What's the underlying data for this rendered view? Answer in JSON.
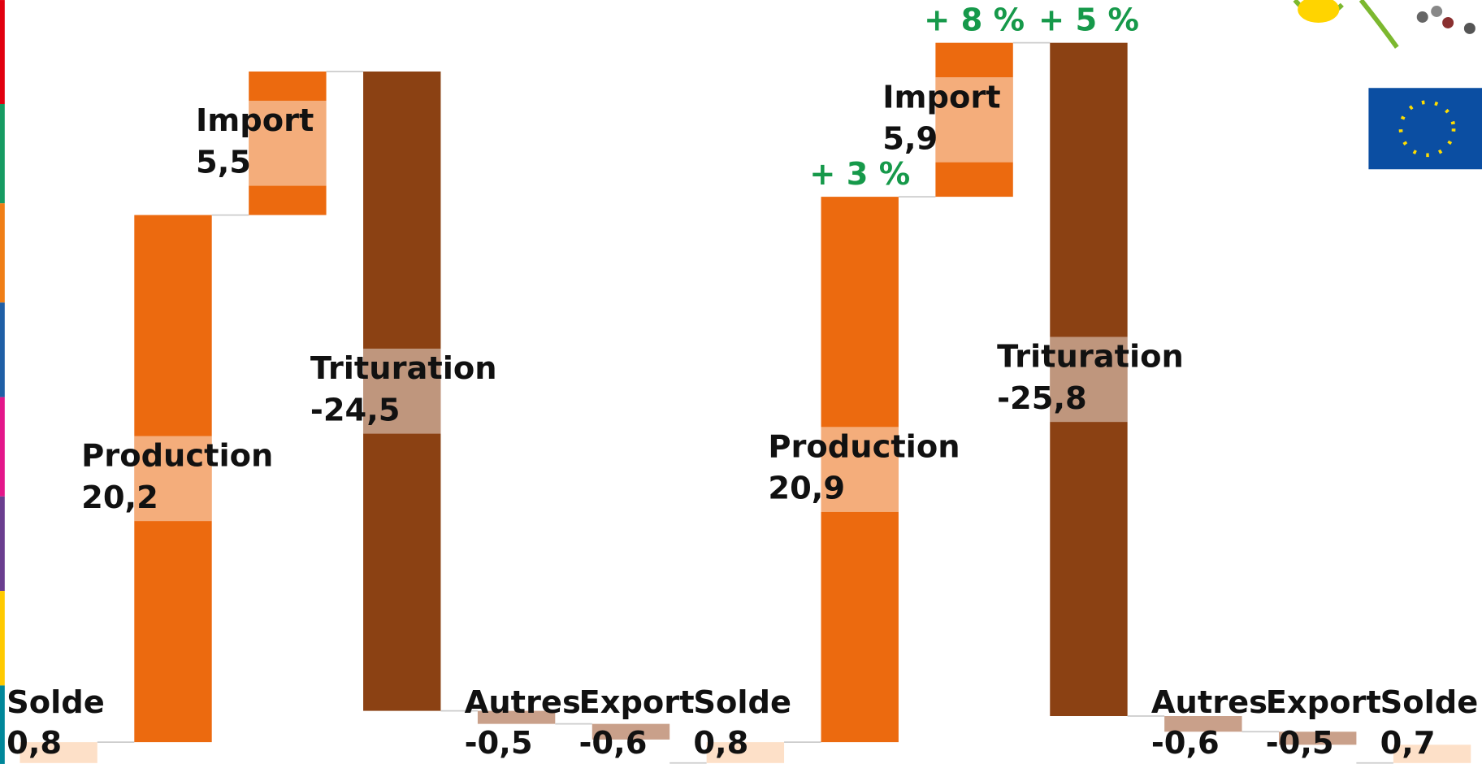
{
  "chart_data": {
    "type": "waterfall",
    "categories": [
      "Solde",
      "Production",
      "Import",
      "Trituration",
      "Autres",
      "Export",
      "Solde",
      "Production",
      "Import",
      "Trituration",
      "Autres",
      "Export",
      "Solde"
    ],
    "values": [
      0.8,
      20.2,
      5.5,
      -24.5,
      -0.5,
      -0.6,
      0.8,
      20.9,
      5.9,
      -25.8,
      -0.6,
      -0.5,
      0.7
    ],
    "value_labels": [
      "0,8",
      "20,2",
      "5,5",
      "-24,5",
      "-0,5",
      "-0,6",
      "0,8",
      "20,9",
      "5,9",
      "-25,8",
      "-0,6",
      "-0,5",
      "0,7"
    ],
    "totals": [
      true,
      false,
      false,
      false,
      false,
      false,
      true,
      false,
      false,
      false,
      false,
      false,
      true
    ],
    "colors": [
      "#fde0c8",
      "#ec6a0f",
      "#ec6a0f",
      "#8b4113",
      "#c9a08a",
      "#c9a08a",
      "#fde0c8",
      "#ec6a0f",
      "#ec6a0f",
      "#8b4113",
      "#c9a08a",
      "#c9a08a",
      "#fde0c8"
    ],
    "change_labels": [
      null,
      null,
      null,
      null,
      null,
      null,
      null,
      "+ 3 %",
      "+ 8 %",
      "+ 5 %",
      null,
      null,
      null
    ],
    "change_color": "#16994a"
  }
}
